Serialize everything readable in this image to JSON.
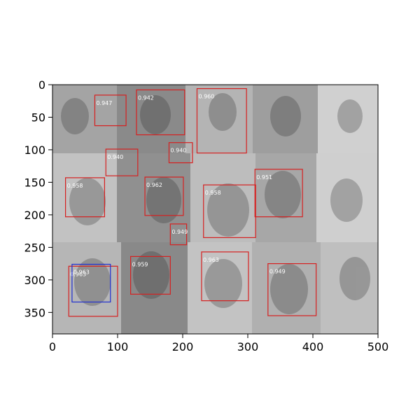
{
  "image": {
    "description_free": true,
    "axes": {
      "x_ticks": [
        "0",
        "100",
        "200",
        "300",
        "400",
        "500"
      ],
      "y_ticks": [
        "0",
        "50",
        "100",
        "150",
        "200",
        "250",
        "300",
        "350"
      ]
    }
  },
  "detections": [
    {
      "label": "0.947",
      "x0": 65,
      "y0": 16,
      "x1": 113,
      "y1": 63,
      "color": "#d62020"
    },
    {
      "label": "0.942",
      "x0": 129,
      "y0": 8,
      "x1": 203,
      "y1": 77,
      "color": "#d62020"
    },
    {
      "label": "0.960",
      "x0": 222,
      "y0": 6,
      "x1": 298,
      "y1": 105,
      "color": "#d62020"
    },
    {
      "label": "0.940",
      "x0": 179,
      "y0": 89,
      "x1": 215,
      "y1": 120,
      "color": "#d62020"
    },
    {
      "label": "0.940",
      "x0": 82,
      "y0": 99,
      "x1": 131,
      "y1": 140,
      "color": "#d62020"
    },
    {
      "label": "0.958",
      "x0": 20,
      "y0": 143,
      "x1": 80,
      "y1": 203,
      "color": "#d62020"
    },
    {
      "label": "0.962",
      "x0": 142,
      "y0": 142,
      "x1": 201,
      "y1": 201,
      "color": "#d62020"
    },
    {
      "label": "0.958",
      "x0": 232,
      "y0": 154,
      "x1": 312,
      "y1": 235,
      "color": "#d62020"
    },
    {
      "label": "0.951",
      "x0": 311,
      "y0": 130,
      "x1": 384,
      "y1": 203,
      "color": "#d62020"
    },
    {
      "label": "0.949",
      "x0": 181,
      "y0": 214,
      "x1": 206,
      "y1": 246,
      "color": "#d62020"
    },
    {
      "label": "0.963",
      "x0": 25,
      "y0": 279,
      "x1": 100,
      "y1": 356,
      "color": "#d62020"
    },
    {
      "label": "0.963",
      "x0": 30,
      "y0": 276,
      "x1": 89,
      "y1": 334,
      "color": "#1f2fd0"
    },
    {
      "label": "0.959",
      "x0": 120,
      "y0": 264,
      "x1": 181,
      "y1": 322,
      "color": "#d62020"
    },
    {
      "label": "0.963",
      "x0": 229,
      "y0": 257,
      "x1": 301,
      "y1": 332,
      "color": "#d62020"
    },
    {
      "label": "0.949",
      "x0": 331,
      "y0": 275,
      "x1": 405,
      "y1": 355,
      "color": "#d62020"
    }
  ]
}
